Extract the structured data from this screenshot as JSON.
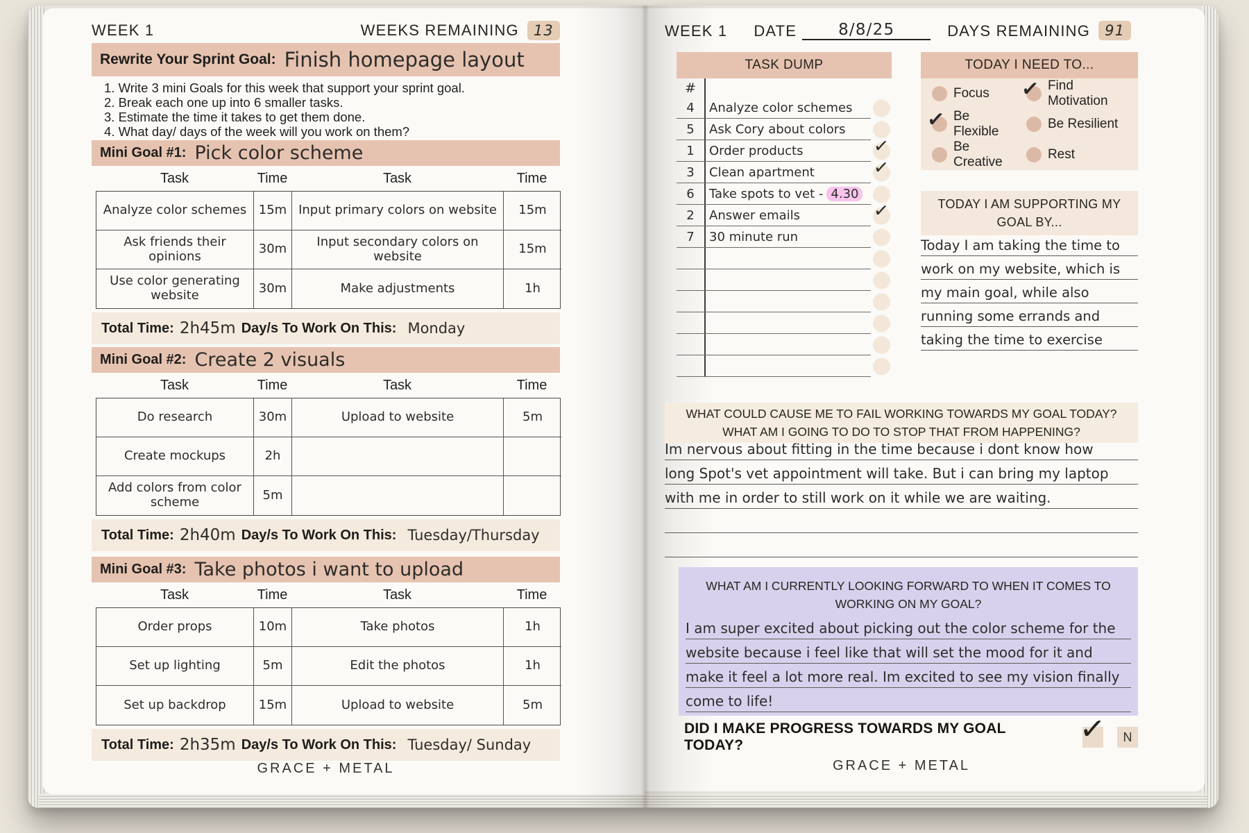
{
  "icons": {
    "check": "✓"
  },
  "left_page": {
    "week_label": "WEEK 1",
    "weeks_remaining_label": "WEEKS REMAINING",
    "weeks_remaining_value": "13",
    "sprint_goal_label": "Rewrite Your Sprint Goal:",
    "sprint_goal_value": "Finish homepage layout",
    "instructions": [
      "1. Write 3 mini Goals for this week that support your sprint goal.",
      "2. Break each one up into 6 smaller tasks.",
      "3. Estimate the time it takes to get them done.",
      "4. What day/ days of the week will you work on them?"
    ],
    "col_headers": [
      "Task",
      "Time",
      "Task",
      "Time"
    ],
    "total_time_label": "Total Time:",
    "days_label": "Day/s To Work On This:",
    "mini_goals": [
      {
        "label": "Mini Goal #1:",
        "title": "Pick color scheme",
        "rows": [
          [
            "Analyze color schemes",
            "15m",
            "Input primary colors on website",
            "15m"
          ],
          [
            "Ask friends their opinions",
            "30m",
            "Input secondary colors on website",
            "15m"
          ],
          [
            "Use color generating website",
            "30m",
            "Make adjustments",
            "1h"
          ]
        ],
        "total_time": "2h45m",
        "days": "Monday"
      },
      {
        "label": "Mini Goal #2:",
        "title": "Create 2 visuals",
        "rows": [
          [
            "Do research",
            "30m",
            "Upload to website",
            "5m"
          ],
          [
            "Create mockups",
            "2h",
            "",
            ""
          ],
          [
            "Add colors from color scheme",
            "5m",
            "",
            ""
          ]
        ],
        "total_time": "2h40m",
        "days": "Tuesday/Thursday"
      },
      {
        "label": "Mini Goal #3:",
        "title": "Take photos i want to upload",
        "rows": [
          [
            "Order props",
            "10m",
            "Take photos",
            "1h"
          ],
          [
            "Set up lighting",
            "5m",
            "Edit the photos",
            "1h"
          ],
          [
            "Set up backdrop",
            "15m",
            "Upload to website",
            "5m"
          ]
        ],
        "total_time": "2h35m",
        "days": "Tuesday/ Sunday"
      }
    ],
    "footer": "GRACE + METAL"
  },
  "right_page": {
    "week_label": "WEEK 1",
    "date_label": "DATE",
    "date_value": "8/8/25",
    "days_remaining_label": "DAYS REMAINING",
    "days_remaining_value": "91",
    "task_dump": {
      "header": "TASK DUMP",
      "number_col_header": "#",
      "tasks": [
        {
          "num": "4",
          "text": "Analyze color schemes",
          "checked": false
        },
        {
          "num": "5",
          "text": "Ask Cory about colors",
          "checked": false
        },
        {
          "num": "1",
          "text": "Order products",
          "checked": true
        },
        {
          "num": "3",
          "text": "Clean apartment",
          "checked": true
        },
        {
          "num": "6",
          "text": "Take spots to vet -",
          "highlight": "4.30",
          "checked": false
        },
        {
          "num": "2",
          "text": "Answer emails",
          "checked": true
        },
        {
          "num": "7",
          "text": "30 minute run",
          "checked": false
        }
      ],
      "empty_rows": 6
    },
    "today_i_need_to": {
      "header": "TODAY I NEED TO...",
      "items": [
        {
          "label": "Focus",
          "checked": false
        },
        {
          "label": "Find Motivation",
          "checked": true
        },
        {
          "label": "Be Flexible",
          "checked": true
        },
        {
          "label": "Be Resilient",
          "checked": false
        },
        {
          "label": "Be Creative",
          "checked": false
        },
        {
          "label": "Rest",
          "checked": false
        }
      ]
    },
    "supporting_goal": {
      "header": "TODAY I AM SUPPORTING MY GOAL BY...",
      "lines": [
        "Today I am taking the time to",
        "work on my website, which is",
        "my main goal, while also",
        "running some errands and",
        "taking the time to exercise"
      ]
    },
    "fail_section": {
      "header_line1": "WHAT COULD CAUSE ME TO FAIL WORKING TOWARDS MY GOAL TODAY?",
      "header_line2": "WHAT AM I GOING TO DO TO STOP THAT FROM HAPPENING?",
      "lines": [
        "Im nervous about fitting in the time because i dont know how",
        "long Spot's vet appointment will take. But i can bring my laptop",
        "with me in order to still work on it while we are waiting."
      ],
      "empty_lines": 2
    },
    "forward_section": {
      "header_line1": "WHAT AM I CURRENTLY LOOKING FORWARD TO WHEN IT COMES TO",
      "header_line2": "WORKING ON MY GOAL?",
      "lines": [
        "I am super excited about picking out the color scheme for the",
        "website because i feel like that will set the mood for it and",
        "make it feel a lot more real. Im excited to see my vision finally",
        "come to life!"
      ]
    },
    "progress": {
      "question": "DID I MAKE PROGRESS TOWARDS MY GOAL TODAY?",
      "yes_checked": true,
      "no_label": "N"
    },
    "footer": "GRACE + METAL"
  },
  "colors": {
    "banner": "#e6c3b0",
    "light_banner": "#f5eade",
    "panel_beige": "#f4e8dd",
    "purple": "#d8d1ed",
    "pink_highlight": "#f7a0e4",
    "tan_highlight": "#d2a680",
    "page": "#fbfaf7",
    "background": "#e9e4da"
  }
}
